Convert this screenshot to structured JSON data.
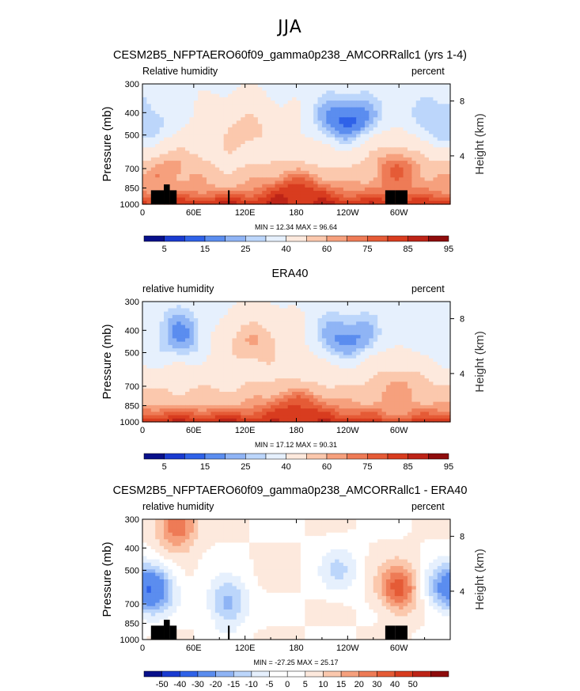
{
  "page_title": "JJA",
  "colors": {
    "rh_scale": [
      "#08108a",
      "#1a3bd0",
      "#2f62e8",
      "#5b8def",
      "#8fb4f5",
      "#bcd6fb",
      "#e6f0fd",
      "#fde9dd",
      "#fbc8ad",
      "#f6a07d",
      "#ee7b56",
      "#e55b36",
      "#d83c1f",
      "#bd2417",
      "#8e0c0c"
    ],
    "diff_scale": [
      "#08108a",
      "#1a3bd0",
      "#2f62e8",
      "#5b8def",
      "#8fb4f5",
      "#bcd6fb",
      "#e6f0fd",
      "#ffffff",
      "#ffffff",
      "#fde9dd",
      "#fbc8ad",
      "#f6a07d",
      "#ee7b56",
      "#e55b36",
      "#d83c1f",
      "#bd2417",
      "#8e0c0c"
    ]
  },
  "panels": [
    {
      "title": "CESM2B5_NFPTAERO60f09_gamma0p238_AMCORRallc1 (yrs 1-4)",
      "variable_label": "Relative humidity",
      "units_label": "percent",
      "minmax": "MIN =   12.34   MAX =   96.64",
      "colorbar_labels": [
        "5",
        "15",
        "25",
        "40",
        "60",
        "75",
        "85",
        "95"
      ]
    },
    {
      "title": "ERA40",
      "variable_label": "relative humidity",
      "units_label": "percent",
      "minmax": "MIN =   17.12   MAX =   90.31",
      "colorbar_labels": [
        "5",
        "15",
        "25",
        "40",
        "60",
        "75",
        "85",
        "95"
      ]
    },
    {
      "title": "CESM2B5_NFPTAERO60f09_gamma0p238_AMCORRallc1 - ERA40",
      "variable_label": "relative humidity",
      "units_label": "percent",
      "minmax": "MIN = -27.25  MAX =  25.17",
      "colorbar_labels": [
        "-50",
        "-40",
        "-30",
        "-20",
        "-15",
        "-10",
        "-5",
        "0",
        "5",
        "10",
        "15",
        "20",
        "30",
        "40",
        "50"
      ]
    }
  ],
  "chart_data": [
    {
      "type": "heatmap",
      "title": "CESM2B5_NFPTAERO60f09_gamma0p238_AMCORRallc1 (yrs 1-4)",
      "subtitle": "Relative humidity (percent), JJA",
      "xlabel": "",
      "ylabel": "Pressure (mb)",
      "y2label": "Height (km)",
      "xticks": [
        "0",
        "60E",
        "120E",
        "180",
        "120W",
        "60W"
      ],
      "xtick_values": [
        0,
        60,
        120,
        180,
        240,
        300
      ],
      "yticks": [
        "300",
        "400",
        "500",
        "700",
        "850",
        "1000"
      ],
      "ytick_values": [
        300,
        400,
        500,
        700,
        850,
        1000
      ],
      "y2ticks": [
        "8",
        "4"
      ],
      "y2tick_values": [
        8,
        4
      ],
      "xlim": [
        0,
        360
      ],
      "ylim": [
        1000,
        300
      ],
      "levels": [
        5,
        10,
        15,
        20,
        25,
        30,
        40,
        50,
        60,
        70,
        75,
        80,
        85,
        90,
        95
      ],
      "min": 12.34,
      "max": 96.64,
      "features": [
        {
          "lon": 120,
          "p": 480,
          "value": 65
        },
        {
          "lon": 240,
          "p": 430,
          "value": 12
        },
        {
          "lon": 300,
          "p": 700,
          "value": 80
        },
        {
          "lon": 30,
          "p": 700,
          "value": 75
        },
        {
          "lon": 5,
          "p": 420,
          "value": 30
        },
        {
          "lon": 350,
          "p": 430,
          "value": 25
        },
        {
          "lon": 180,
          "p": 950,
          "value": 90
        }
      ]
    },
    {
      "type": "heatmap",
      "title": "ERA40",
      "subtitle": "relative humidity (percent), JJA",
      "xlabel": "",
      "ylabel": "Pressure (mb)",
      "y2label": "Height (km)",
      "xticks": [
        "0",
        "60E",
        "120E",
        "180",
        "120W",
        "60W"
      ],
      "xtick_values": [
        0,
        60,
        120,
        180,
        240,
        300
      ],
      "yticks": [
        "300",
        "400",
        "500",
        "700",
        "850",
        "1000"
      ],
      "ytick_values": [
        300,
        400,
        500,
        700,
        850,
        1000
      ],
      "y2ticks": [
        "8",
        "4"
      ],
      "y2tick_values": [
        8,
        4
      ],
      "xlim": [
        0,
        360
      ],
      "ylim": [
        1000,
        300
      ],
      "levels": [
        5,
        10,
        15,
        20,
        25,
        30,
        40,
        50,
        60,
        70,
        75,
        80,
        85,
        90,
        95
      ],
      "min": 17.12,
      "max": 90.31,
      "features": [
        {
          "lon": 45,
          "p": 420,
          "value": 18
        },
        {
          "lon": 240,
          "p": 430,
          "value": 17
        },
        {
          "lon": 350,
          "p": 450,
          "value": 30
        },
        {
          "lon": 130,
          "p": 450,
          "value": 70
        },
        {
          "lon": 300,
          "p": 750,
          "value": 72
        },
        {
          "lon": 180,
          "p": 960,
          "value": 88
        }
      ]
    },
    {
      "type": "heatmap",
      "title": "CESM2B5_NFPTAERO60f09_gamma0p238_AMCORRallc1 - ERA40",
      "subtitle": "relative humidity difference (percent), JJA",
      "xlabel": "",
      "ylabel": "Pressure (mb)",
      "y2label": "Height (km)",
      "xticks": [
        "0",
        "60E",
        "120E",
        "180",
        "120W",
        "60W"
      ],
      "xtick_values": [
        0,
        60,
        120,
        180,
        240,
        300
      ],
      "yticks": [
        "300",
        "400",
        "500",
        "700",
        "850",
        "1000"
      ],
      "ytick_values": [
        300,
        400,
        500,
        700,
        850,
        1000
      ],
      "y2ticks": [
        "8",
        "4"
      ],
      "y2tick_values": [
        8,
        4
      ],
      "xlim": [
        0,
        360
      ],
      "ylim": [
        1000,
        300
      ],
      "levels": [
        -50,
        -40,
        -30,
        -20,
        -15,
        -10,
        -5,
        0,
        5,
        10,
        15,
        20,
        30,
        40,
        50
      ],
      "min": -27.25,
      "max": 25.17,
      "features": [
        {
          "lon": 15,
          "p": 600,
          "value": -25
        },
        {
          "lon": 40,
          "p": 320,
          "value": 20
        },
        {
          "lon": 100,
          "p": 700,
          "value": -18
        },
        {
          "lon": 300,
          "p": 600,
          "value": 22
        },
        {
          "lon": 350,
          "p": 600,
          "value": -15
        },
        {
          "lon": 230,
          "p": 500,
          "value": -10
        }
      ]
    }
  ]
}
